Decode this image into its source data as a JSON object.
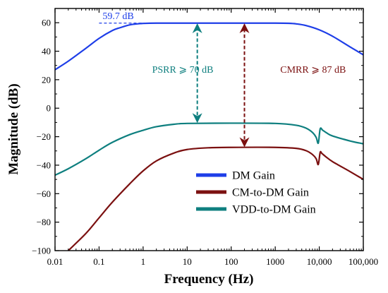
{
  "chart_data": {
    "type": "line",
    "xlabel": "Frequency (Hz)",
    "ylabel": "Magnitude (dB)",
    "xscale": "log",
    "xlim": [
      0.01,
      100000
    ],
    "ylim": [
      -100,
      70
    ],
    "grid": false,
    "x_ticks": [
      {
        "value": 0.01,
        "label": "0.01"
      },
      {
        "value": 0.1,
        "label": "0.1"
      },
      {
        "value": 1,
        "label": "1"
      },
      {
        "value": 10,
        "label": "10"
      },
      {
        "value": 100,
        "label": "100"
      },
      {
        "value": 1000,
        "label": "1000"
      },
      {
        "value": 10000,
        "label": "10,000"
      },
      {
        "value": 100000,
        "label": "100,000"
      }
    ],
    "y_ticks": [
      {
        "value": 60,
        "label": "60"
      },
      {
        "value": 40,
        "label": "40"
      },
      {
        "value": 20,
        "label": "20"
      },
      {
        "value": 0,
        "label": "0"
      },
      {
        "value": -20,
        "label": "−20"
      },
      {
        "value": -40,
        "label": "−40"
      },
      {
        "value": -60,
        "label": "−60"
      },
      {
        "value": -80,
        "label": "−80"
      },
      {
        "value": -100,
        "label": "−100"
      }
    ],
    "legend_position": "lower-right",
    "series": [
      {
        "name": "DM Gain",
        "color": "#1e3ee8",
        "x": [
          0.01,
          0.02,
          0.05,
          0.1,
          0.2,
          0.3,
          0.5,
          0.8,
          1,
          2,
          5,
          10,
          100,
          1000,
          2000,
          3000,
          5000,
          10000,
          20000,
          50000,
          100000
        ],
        "y": [
          27,
          33,
          42,
          49,
          54.5,
          56.5,
          58.5,
          59.3,
          59.5,
          59.7,
          59.7,
          59.7,
          59.7,
          59.7,
          59.6,
          59.2,
          58,
          55,
          50.5,
          43,
          37.5
        ]
      },
      {
        "name": "CM-to-DM Gain",
        "color": "#7b1010",
        "x": [
          0.02,
          0.05,
          0.1,
          0.2,
          0.5,
          1,
          2,
          5,
          10,
          30,
          100,
          1000,
          3000,
          5000,
          7000,
          8500,
          9500,
          10500,
          11500,
          14000,
          20000,
          50000,
          100000
        ],
        "y": [
          -100,
          -88,
          -77,
          -66,
          -53,
          -44,
          -37,
          -31.5,
          -29,
          -27.8,
          -27.5,
          -27.5,
          -28.2,
          -29.8,
          -32.5,
          -35.5,
          -39.5,
          -31,
          -31.8,
          -34,
          -37.5,
          -44.5,
          -50
        ]
      },
      {
        "name": "VDD-to-DM Gain",
        "color": "#0e7f7f",
        "x": [
          0.01,
          0.02,
          0.05,
          0.1,
          0.2,
          0.5,
          1,
          2,
          5,
          10,
          100,
          1000,
          3000,
          5000,
          7000,
          8500,
          9500,
          10500,
          12000,
          15000,
          20000,
          50000,
          100000
        ],
        "y": [
          -47,
          -42.5,
          -35.5,
          -29.5,
          -24,
          -18.5,
          -15.5,
          -13,
          -11.3,
          -10.7,
          -10.5,
          -10.7,
          -12,
          -14,
          -17,
          -20.5,
          -24.5,
          -14.5,
          -15.5,
          -17.5,
          -19.5,
          -23,
          -25
        ]
      }
    ],
    "annotations": [
      {
        "text": "59.7 dB",
        "x": 0.12,
        "y": 62.5,
        "color": "#1e3ee8",
        "marks_level": 59.7
      },
      {
        "text": "PSRR ⩾ 70 dB",
        "x": 1.6,
        "y": 25,
        "color": "#0e7f7f",
        "arrow_x": 17,
        "arrow_from": -10.5,
        "arrow_to": 59.7
      },
      {
        "text": "CMRR ⩾ 87 dB",
        "x": 1300,
        "y": 25,
        "color": "#7b1010",
        "arrow_x": 200,
        "arrow_from": -27.5,
        "arrow_to": 59.7
      }
    ]
  }
}
